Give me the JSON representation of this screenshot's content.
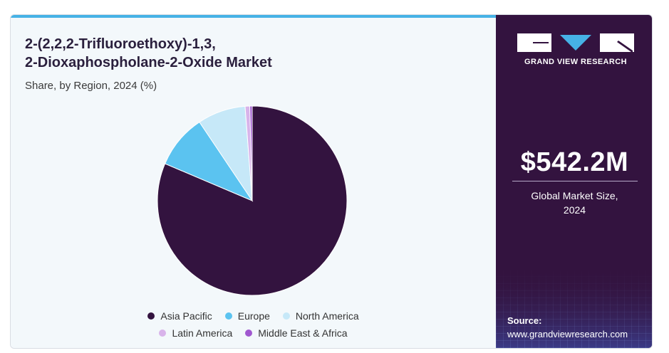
{
  "header": {
    "title_line1": "2-(2,2,2-Trifluoroethoxy)-1,3,",
    "title_line2": "2-Dioxaphospholane-2-Oxide Market",
    "subtitle": "Share, by Region, 2024 (%)"
  },
  "colors": {
    "asia_pacific": "#33133f",
    "europe": "#5bc3f0",
    "north_america": "#c6e8f8",
    "latin_america": "#d8b3ea",
    "middle_east_africa": "#a058d0",
    "accent_bar": "#46b2e6",
    "panel": "#33133f"
  },
  "chart_data": {
    "type": "pie",
    "title": "2-(2,2,2-Trifluoroethoxy)-1,3, 2-Dioxaphospholane-2-Oxide Market",
    "subtitle": "Share, by Region, 2024 (%)",
    "categories": [
      "Asia Pacific",
      "Europe",
      "North America",
      "Latin America",
      "Middle East & Africa"
    ],
    "values": [
      81.4,
      9.2,
      8.2,
      0.8,
      0.4
    ],
    "legend_position": "bottom"
  },
  "legend": {
    "row1": [
      "Asia Pacific",
      "Europe",
      "North America"
    ],
    "row2": [
      "Latin America",
      "Middle East & Africa"
    ]
  },
  "sidebar": {
    "brand": "GRAND VIEW RESEARCH",
    "market_size": "$542.2M",
    "market_size_label_line1": "Global Market Size,",
    "market_size_label_line2": "2024",
    "source_label": "Source:",
    "source_url": "www.grandviewresearch.com"
  }
}
